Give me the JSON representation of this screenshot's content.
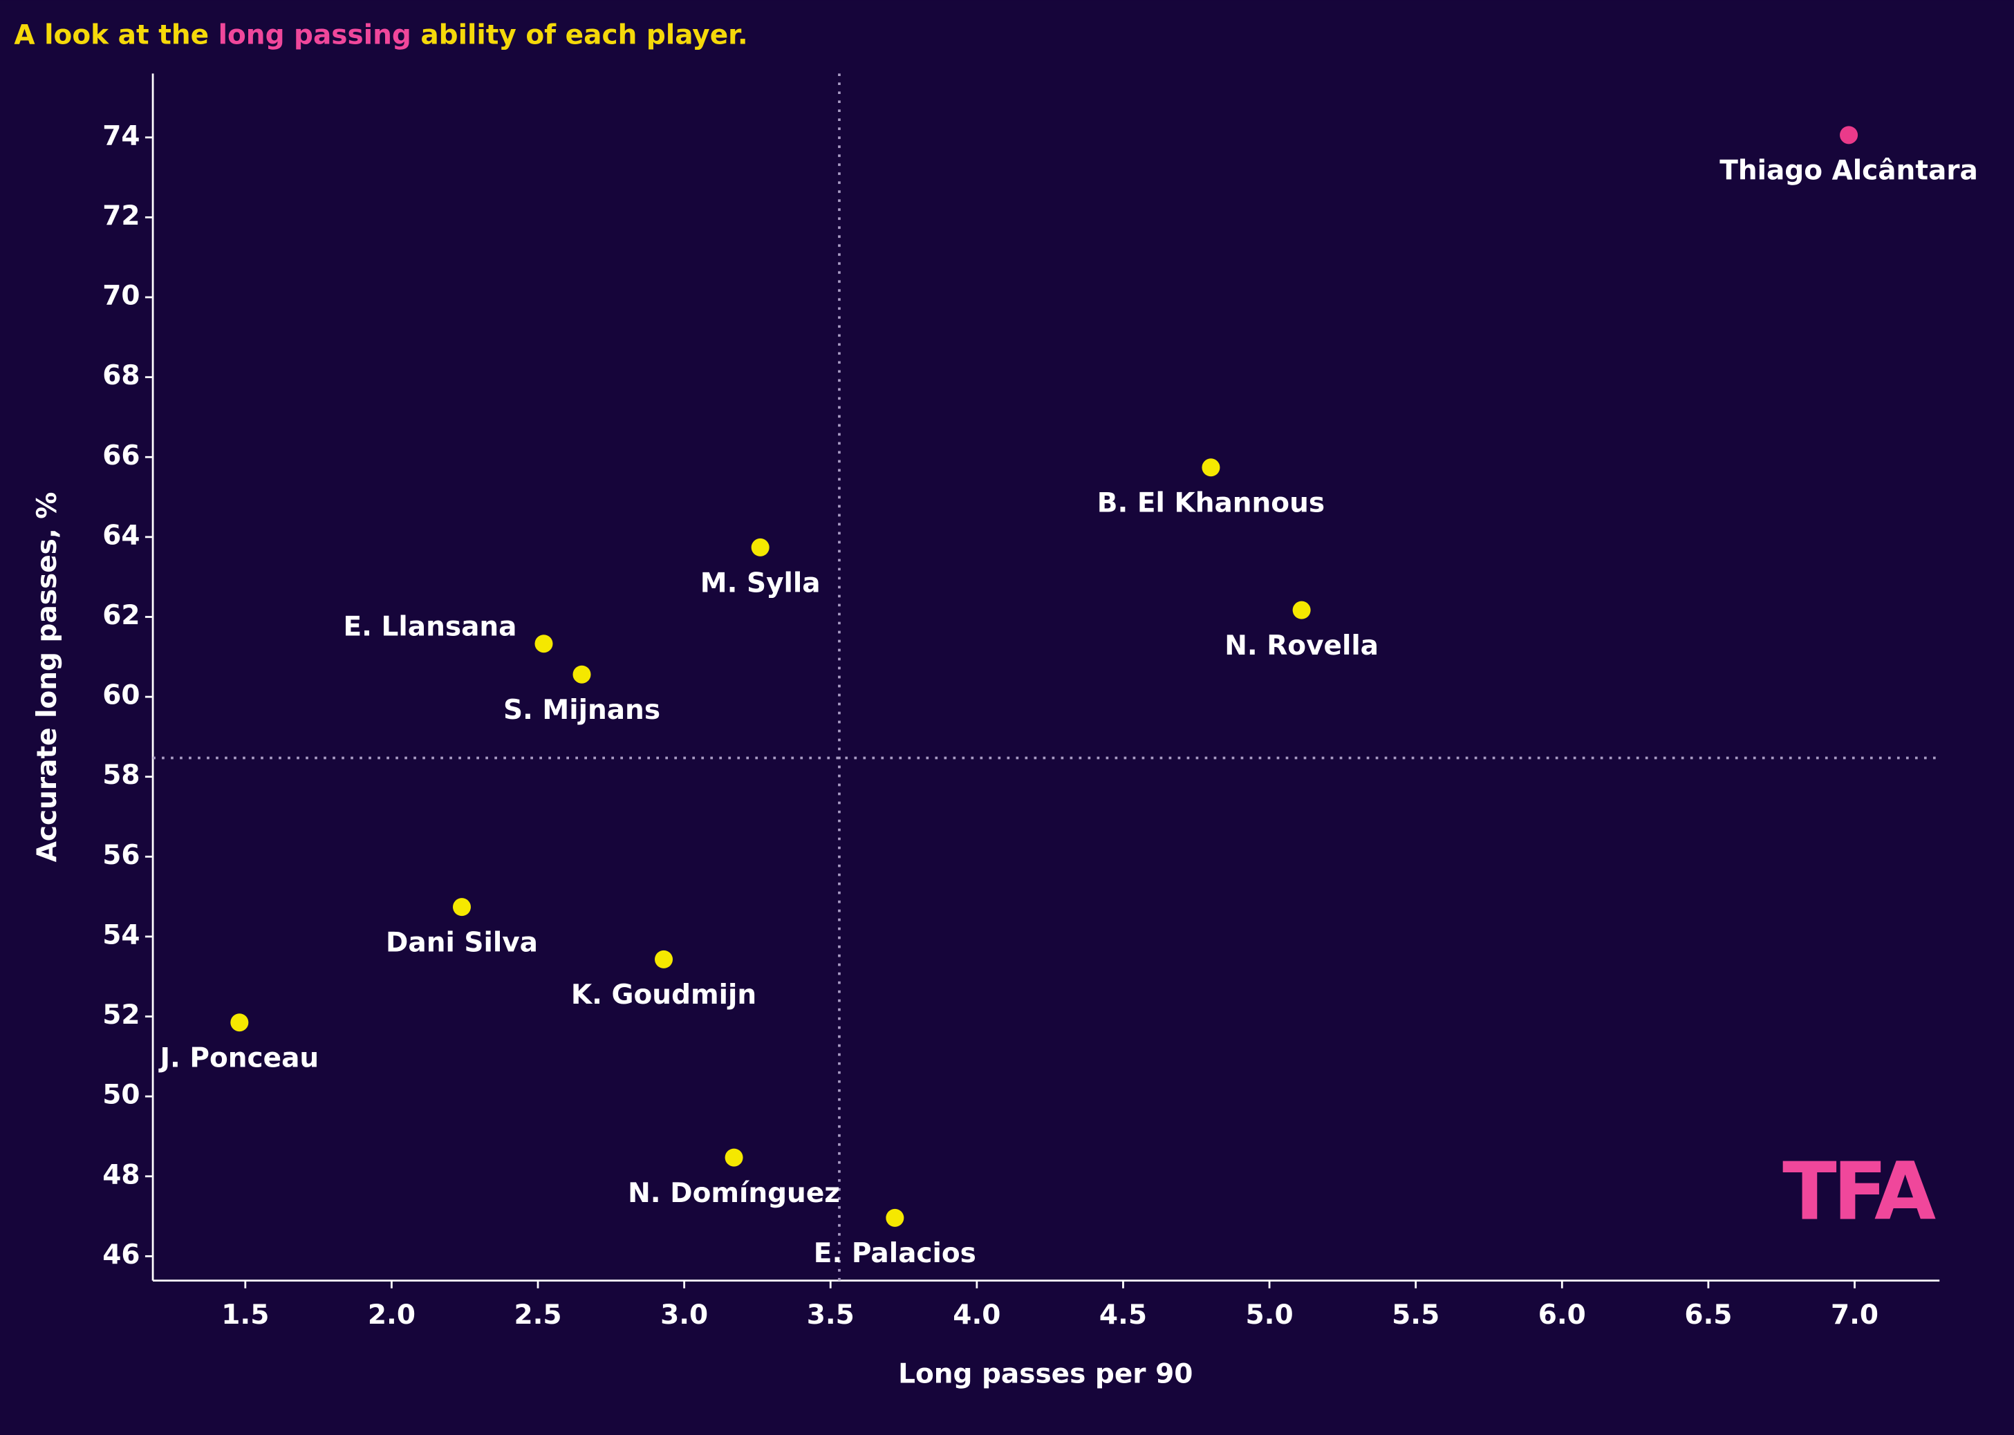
{
  "chart_data": {
    "type": "scatter",
    "title_parts": [
      "A look at the ",
      "long passing",
      " ability of each player."
    ],
    "x_label": "Long passes per 90",
    "y_label": "Accurate long passes, %",
    "logo": "TFA",
    "labels": [
      "Thiago Alcântara",
      "B. El Khannous",
      "N. Rovella",
      "M. Sylla",
      "E. Llansana",
      "S. Mijnans",
      "Dani Silva",
      "K. Goudmijn",
      "J. Ponceau",
      "N. Domínguez",
      "E. Palacios"
    ],
    "x": [
      6.98,
      4.8,
      5.11,
      3.26,
      2.52,
      2.65,
      2.24,
      2.93,
      1.48,
      3.17,
      3.72
    ],
    "y": [
      74.06,
      65.74,
      62.17,
      63.74,
      61.33,
      60.56,
      54.74,
      53.43,
      51.85,
      48.47,
      46.96
    ],
    "colors": [
      "#ea3a8a",
      "#f5e800",
      "#f5e800",
      "#f5e800",
      "#f5e800",
      "#f5e800",
      "#f5e800",
      "#f5e800",
      "#f5e800",
      "#f5e800",
      "#f5e800"
    ],
    "xlim": [
      1.184,
      7.29
    ],
    "ylim": [
      45.39,
      75.6
    ],
    "xticks": [
      1.5,
      {
        "value": 2,
        "label": "2.0"
      },
      2.5,
      {
        "value": 3,
        "label": "3.0"
      },
      3.5,
      {
        "value": 4,
        "label": "4.0"
      },
      4.5,
      {
        "value": 5,
        "label": "5.0"
      },
      5.5,
      {
        "value": 6,
        "label": "6.0"
      },
      6.5,
      {
        "value": 7,
        "label": "7.0"
      }
    ],
    "yticks": [
      46,
      48,
      50,
      52,
      54,
      56,
      58,
      60,
      62,
      64,
      66,
      68,
      70,
      72,
      74
    ],
    "x_reference": 3.53,
    "y_reference": 58.47,
    "grid": false
  }
}
